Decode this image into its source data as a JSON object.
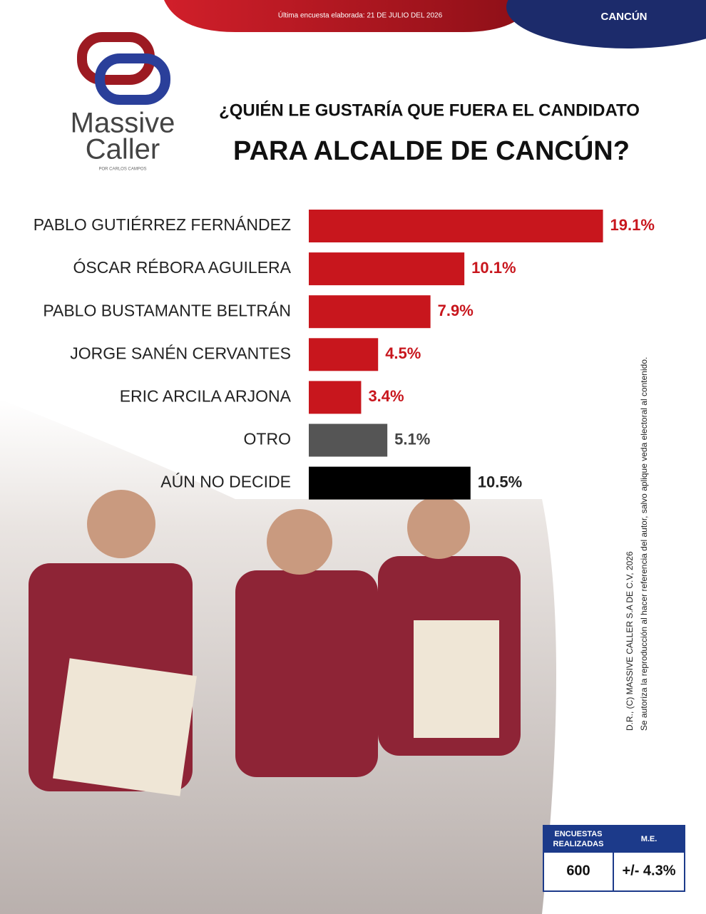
{
  "header": {
    "survey_date": "Última encuesta elaborada: 21 DE JULIO DEL 2026",
    "location": "CANCÚN"
  },
  "logo": {
    "line1": "Massive",
    "line2": "Caller",
    "byline": "POR CARLOS CAMPOS"
  },
  "chart_data": {
    "type": "hbar",
    "title": "¿QUIÉN LE GUSTARÍA QUE FUERA EL CANDIDATO",
    "subtitle": "PARA ALCALDE DE CANCÚN?",
    "categories": [
      "PABLO GUTIÉRREZ FERNÁNDEZ",
      "ÓSCAR RÉBORA AGUILERA",
      "PABLO BUSTAMANTE BELTRÁN",
      "JORGE SANÉN CERVANTES",
      "ERIC ARCILA ARJONA",
      "OTRO",
      "AÚN NO DECIDE"
    ],
    "values": [
      19.1,
      10.1,
      7.9,
      4.5,
      3.4,
      5.1,
      10.5
    ],
    "value_labels": [
      "19.1%",
      "10.1%",
      "7.9%",
      "4.5%",
      "3.4%",
      "5.1%",
      "10.5%"
    ],
    "colors": [
      "#c8161d",
      "#c8161d",
      "#c8161d",
      "#c8161d",
      "#c8161d",
      "#555555",
      "#000000"
    ],
    "label_colors": [
      "#c8161d",
      "#c8161d",
      "#c8161d",
      "#c8161d",
      "#c8161d",
      "#444444",
      "#222222"
    ]
  },
  "copyright": {
    "line1": "D.R., (C) MASSIVE CALLER S.A DE C.V, 2026",
    "line2": "Se autoriza la reproducción al hacer referencia del autor, salvo aplique veda electoral al contenido."
  },
  "survey_box": {
    "headers": [
      [
        "ENCUESTAS",
        "REALIZADAS"
      ],
      [
        "M.E."
      ]
    ],
    "values": [
      "600",
      "+/- 4.3%"
    ]
  }
}
